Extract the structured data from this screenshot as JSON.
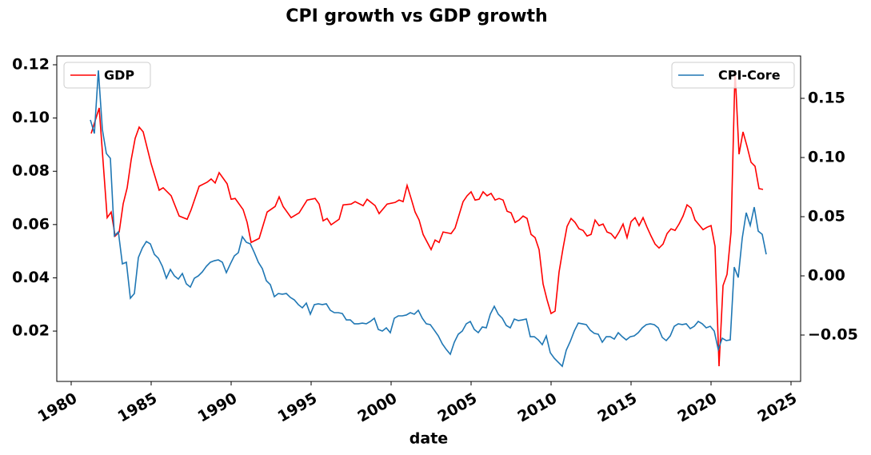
{
  "chart_data": {
    "type": "line",
    "title": "CPI growth vs GDP growth",
    "x_label": "date",
    "xlim": [
      1979.1,
      2025.6
    ],
    "xticks": [
      1980,
      1985,
      1990,
      1995,
      2000,
      2005,
      2010,
      2015,
      2020,
      2025
    ],
    "ylim": [
      0.0011,
      0.1233
    ],
    "yticks": [
      0.02,
      0.04,
      0.06,
      0.08,
      {
        "value": 0.1,
        "label": "0.10"
      },
      0.12
    ],
    "y2lim": [
      -0.0892,
      0.1858
    ],
    "y2ticks": [
      {
        "value": -0.05,
        "label": "−0.05"
      },
      {
        "value": 0,
        "label": "0.00"
      },
      0.05,
      {
        "value": 0.1,
        "label": "0.10"
      },
      0.15
    ],
    "grid": false,
    "series": [
      {
        "name": "GDP",
        "color": "#ff0000",
        "axis": "y",
        "legend_loc": "upper left",
        "x": [
          1981.25,
          1981.75,
          1982.25,
          1982.5,
          1982.75,
          1983.0,
          1983.25,
          1983.5,
          1983.75,
          1984.0,
          1984.25,
          1984.5,
          1985.0,
          1985.5,
          1985.75,
          1986.25,
          1986.75,
          1987.25,
          1987.5,
          1988.0,
          1988.5,
          1988.75,
          1989.0,
          1989.25,
          1989.75,
          1990.0,
          1990.25,
          1990.75,
          1991.0,
          1991.25,
          1991.75,
          1992.25,
          1992.75,
          1993.0,
          1993.25,
          1993.75,
          1994.25,
          1994.75,
          1995.25,
          1995.5,
          1995.75,
          1996.0,
          1996.25,
          1996.75,
          1997.0,
          1997.5,
          1997.75,
          1998.25,
          1998.5,
          1999.0,
          1999.25,
          1999.75,
          2000.25,
          2000.5,
          2000.75,
          2001.0,
          2001.25,
          2001.5,
          2001.75,
          2002.0,
          2002.5,
          2002.75,
          2003.0,
          2003.25,
          2003.75,
          2004.0,
          2004.5,
          2004.75,
          2005.0,
          2005.25,
          2005.5,
          2005.75,
          2006.0,
          2006.25,
          2006.5,
          2006.75,
          2007.0,
          2007.25,
          2007.5,
          2007.75,
          2008.0,
          2008.25,
          2008.5,
          2008.75,
          2009.0,
          2009.25,
          2009.5,
          2009.75,
          2010.0,
          2010.25,
          2010.5,
          2010.75,
          2011.0,
          2011.25,
          2011.5,
          2011.75,
          2012.0,
          2012.25,
          2012.5,
          2012.75,
          2013.0,
          2013.25,
          2013.5,
          2013.75,
          2014.0,
          2014.25,
          2014.5,
          2014.75,
          2015.0,
          2015.25,
          2015.5,
          2015.75,
          2016.0,
          2016.25,
          2016.5,
          2016.75,
          2017.0,
          2017.25,
          2017.5,
          2017.75,
          2018.0,
          2018.25,
          2018.5,
          2018.75,
          2019.0,
          2019.25,
          2019.5,
          2019.75,
          2020.0,
          2020.25,
          2020.5,
          2020.75,
          2021.0,
          2021.25,
          2021.5,
          2021.75,
          2022.0,
          2022.25,
          2022.5,
          2022.75,
          2023.0,
          2023.25
        ],
        "values": [
          0.0942,
          0.1038,
          0.0626,
          0.0647,
          0.0557,
          0.0572,
          0.0678,
          0.0738,
          0.0843,
          0.0924,
          0.0966,
          0.0948,
          0.0828,
          0.0729,
          0.0738,
          0.0708,
          0.0632,
          0.062,
          0.0656,
          0.0744,
          0.0759,
          0.0771,
          0.0756,
          0.0795,
          0.0753,
          0.0695,
          0.0698,
          0.0656,
          0.0608,
          0.0533,
          0.0548,
          0.0647,
          0.0668,
          0.0704,
          0.0668,
          0.0626,
          0.0644,
          0.0692,
          0.0698,
          0.0677,
          0.0614,
          0.0623,
          0.0599,
          0.062,
          0.0674,
          0.0677,
          0.0686,
          0.0671,
          0.0695,
          0.0671,
          0.0641,
          0.0677,
          0.0683,
          0.0692,
          0.0686,
          0.0747,
          0.0698,
          0.0647,
          0.0617,
          0.0563,
          0.0506,
          0.0542,
          0.0533,
          0.0572,
          0.0566,
          0.0587,
          0.0686,
          0.0708,
          0.0723,
          0.0692,
          0.0695,
          0.0723,
          0.0708,
          0.0717,
          0.0692,
          0.0698,
          0.0692,
          0.065,
          0.0644,
          0.0608,
          0.0617,
          0.0632,
          0.0623,
          0.0563,
          0.0551,
          0.0506,
          0.0377,
          0.0317,
          0.0266,
          0.0275,
          0.0422,
          0.0512,
          0.0593,
          0.0623,
          0.0608,
          0.0584,
          0.0578,
          0.0557,
          0.0563,
          0.0617,
          0.0596,
          0.0602,
          0.0572,
          0.0566,
          0.0548,
          0.0572,
          0.0602,
          0.0551,
          0.0611,
          0.0626,
          0.0596,
          0.0626,
          0.059,
          0.0557,
          0.0527,
          0.0512,
          0.0527,
          0.0566,
          0.0584,
          0.0578,
          0.0602,
          0.0632,
          0.0674,
          0.0662,
          0.0617,
          0.0599,
          0.0581,
          0.059,
          0.0596,
          0.0518,
          0.0068,
          0.0371,
          0.0413,
          0.0572,
          0.1179,
          0.0864,
          0.0948,
          0.0894,
          0.0834,
          0.0819,
          0.0735,
          0.0732
        ]
      },
      {
        "name": "CPI-Core",
        "color": "#1f77b4",
        "axis": "y2",
        "legend_loc": "upper right",
        "x": [
          1981.2,
          1981.45,
          1981.7,
          1981.95,
          1982.2,
          1982.45,
          1982.7,
          1982.95,
          1983.2,
          1983.45,
          1983.7,
          1983.95,
          1984.2,
          1984.45,
          1984.7,
          1984.95,
          1985.2,
          1985.45,
          1985.7,
          1985.95,
          1986.2,
          1986.45,
          1986.7,
          1986.95,
          1987.2,
          1987.45,
          1987.7,
          1987.95,
          1988.2,
          1988.45,
          1988.7,
          1988.95,
          1989.2,
          1989.45,
          1989.7,
          1989.95,
          1990.2,
          1990.45,
          1990.7,
          1990.95,
          1991.2,
          1991.45,
          1991.7,
          1991.95,
          1992.2,
          1992.45,
          1992.7,
          1992.95,
          1993.2,
          1993.45,
          1993.7,
          1993.95,
          1994.2,
          1994.45,
          1994.7,
          1994.95,
          1995.2,
          1995.45,
          1995.7,
          1995.95,
          1996.2,
          1996.45,
          1996.7,
          1996.95,
          1997.2,
          1997.45,
          1997.7,
          1997.95,
          1998.2,
          1998.45,
          1998.7,
          1998.95,
          1999.2,
          1999.45,
          1999.7,
          1999.95,
          2000.2,
          2000.45,
          2000.7,
          2000.95,
          2001.2,
          2001.45,
          2001.7,
          2001.95,
          2002.2,
          2002.45,
          2002.7,
          2002.95,
          2003.2,
          2003.45,
          2003.7,
          2003.95,
          2004.2,
          2004.45,
          2004.7,
          2004.95,
          2005.2,
          2005.45,
          2005.7,
          2005.95,
          2006.2,
          2006.45,
          2006.7,
          2006.95,
          2007.2,
          2007.45,
          2007.7,
          2007.95,
          2008.2,
          2008.45,
          2008.7,
          2008.95,
          2009.2,
          2009.45,
          2009.7,
          2009.95,
          2010.2,
          2010.45,
          2010.7,
          2010.95,
          2011.2,
          2011.45,
          2011.7,
          2011.95,
          2012.2,
          2012.45,
          2012.7,
          2012.95,
          2013.2,
          2013.45,
          2013.7,
          2013.95,
          2014.2,
          2014.45,
          2014.7,
          2014.95,
          2015.2,
          2015.45,
          2015.7,
          2015.95,
          2016.2,
          2016.45,
          2016.7,
          2016.95,
          2017.2,
          2017.45,
          2017.7,
          2017.95,
          2018.2,
          2018.45,
          2018.7,
          2018.95,
          2019.2,
          2019.45,
          2019.7,
          2019.95,
          2020.2,
          2020.45,
          2020.7,
          2020.95,
          2021.2,
          2021.45,
          2021.7,
          2021.95,
          2022.2,
          2022.45,
          2022.7,
          2022.95,
          2023.2,
          2023.45
        ],
        "values": [
          0.1318,
          0.1203,
          0.1736,
          0.1236,
          0.1034,
          0.0993,
          0.0338,
          0.0372,
          0.0101,
          0.0115,
          -0.0189,
          -0.0149,
          0.0155,
          0.0236,
          0.0291,
          0.027,
          0.0182,
          0.0149,
          0.0081,
          -0.002,
          0.0054,
          0,
          -0.0027,
          0.002,
          -0.0068,
          -0.0095,
          -0.002,
          0,
          0.0034,
          0.0081,
          0.0115,
          0.0128,
          0.0135,
          0.0115,
          0.0027,
          0.0101,
          0.0169,
          0.0196,
          0.0331,
          0.0284,
          0.027,
          0.0196,
          0.0115,
          0.0061,
          -0.0041,
          -0.0074,
          -0.0176,
          -0.0149,
          -0.0155,
          -0.0149,
          -0.0182,
          -0.0203,
          -0.0243,
          -0.027,
          -0.023,
          -0.0324,
          -0.0243,
          -0.0236,
          -0.0243,
          -0.0236,
          -0.0291,
          -0.0311,
          -0.0311,
          -0.0318,
          -0.0372,
          -0.0372,
          -0.0405,
          -0.0405,
          -0.0399,
          -0.0405,
          -0.0385,
          -0.0358,
          -0.0453,
          -0.0466,
          -0.0439,
          -0.048,
          -0.0358,
          -0.0338,
          -0.0338,
          -0.0331,
          -0.0311,
          -0.0324,
          -0.0291,
          -0.0358,
          -0.0405,
          -0.0412,
          -0.0459,
          -0.0507,
          -0.0574,
          -0.0622,
          -0.0662,
          -0.0561,
          -0.0493,
          -0.0466,
          -0.0405,
          -0.0385,
          -0.0453,
          -0.048,
          -0.0432,
          -0.0439,
          -0.0324,
          -0.0257,
          -0.0324,
          -0.0358,
          -0.0419,
          -0.0439,
          -0.0365,
          -0.0378,
          -0.0372,
          -0.0365,
          -0.0514,
          -0.0514,
          -0.0541,
          -0.0581,
          -0.0507,
          -0.0649,
          -0.0696,
          -0.073,
          -0.0764,
          -0.0628,
          -0.0554,
          -0.0466,
          -0.0399,
          -0.0405,
          -0.0412,
          -0.0459,
          -0.0486,
          -0.0493,
          -0.0561,
          -0.0514,
          -0.0514,
          -0.0534,
          -0.048,
          -0.0514,
          -0.0541,
          -0.0514,
          -0.0507,
          -0.048,
          -0.0439,
          -0.0412,
          -0.0405,
          -0.0412,
          -0.0439,
          -0.052,
          -0.0547,
          -0.0507,
          -0.0426,
          -0.0405,
          -0.0412,
          -0.0405,
          -0.0446,
          -0.0426,
          -0.0385,
          -0.0405,
          -0.0439,
          -0.0426,
          -0.0466,
          -0.0622,
          -0.0527,
          -0.0547,
          -0.0541,
          0.0074,
          -0.0014,
          0.0318,
          0.0534,
          0.0426,
          0.0581,
          0.0378,
          0.0351,
          0.0182
        ]
      }
    ]
  }
}
